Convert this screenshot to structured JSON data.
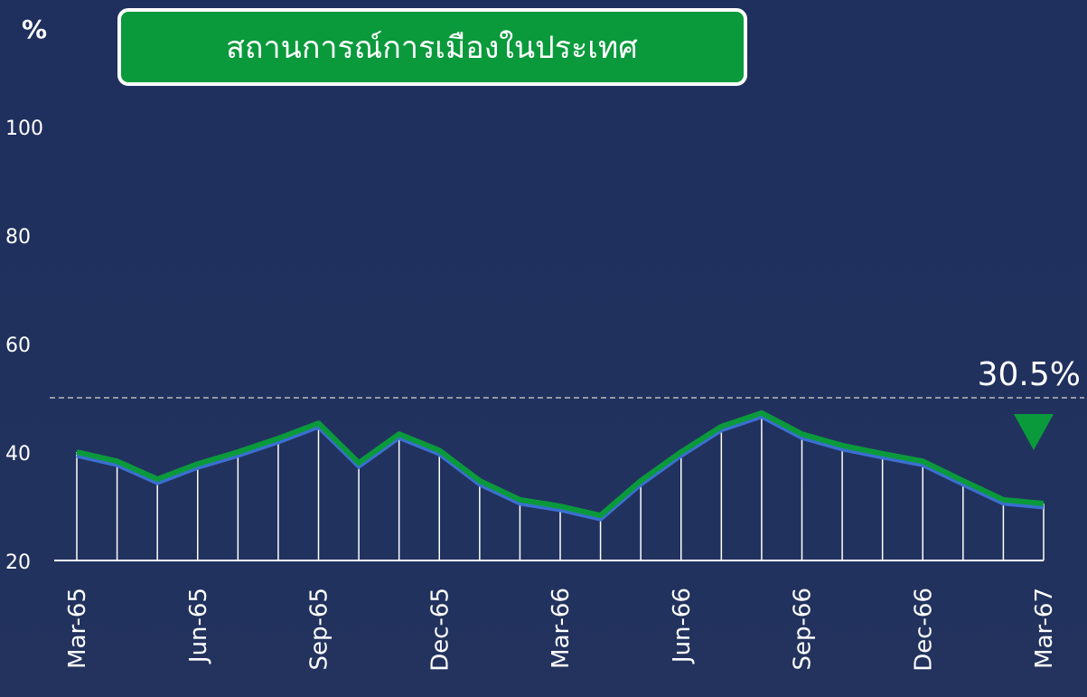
{
  "chart_data": {
    "type": "line",
    "title": "สถานการณ์การเมืองในประเทศ",
    "y_label": "%",
    "categories": [
      "Mar-65",
      null,
      null,
      "Jun-65",
      null,
      null,
      "Sep-65",
      null,
      null,
      "Dec-65",
      null,
      null,
      "Mar-66",
      null,
      null,
      "Jun-66",
      null,
      null,
      "Sep-66",
      null,
      null,
      "Dec-66",
      null,
      null,
      "Mar-67"
    ],
    "series": [
      {
        "color": "#0a9a3c",
        "values": [
          40,
          38.3,
          35,
          37.8,
          40,
          42.5,
          45.3,
          38,
          43.3,
          40.3,
          34.7,
          31.2,
          30,
          28.3,
          34.7,
          40,
          44.7,
          47.2,
          43.3,
          41.2,
          39.7,
          38.3,
          34.7,
          31.2,
          30.5
        ]
      }
    ],
    "ylim": [
      20,
      100
    ],
    "yticks": [
      20,
      40,
      60,
      80,
      100
    ],
    "reference_line": 50,
    "annotation": "30.5%"
  }
}
